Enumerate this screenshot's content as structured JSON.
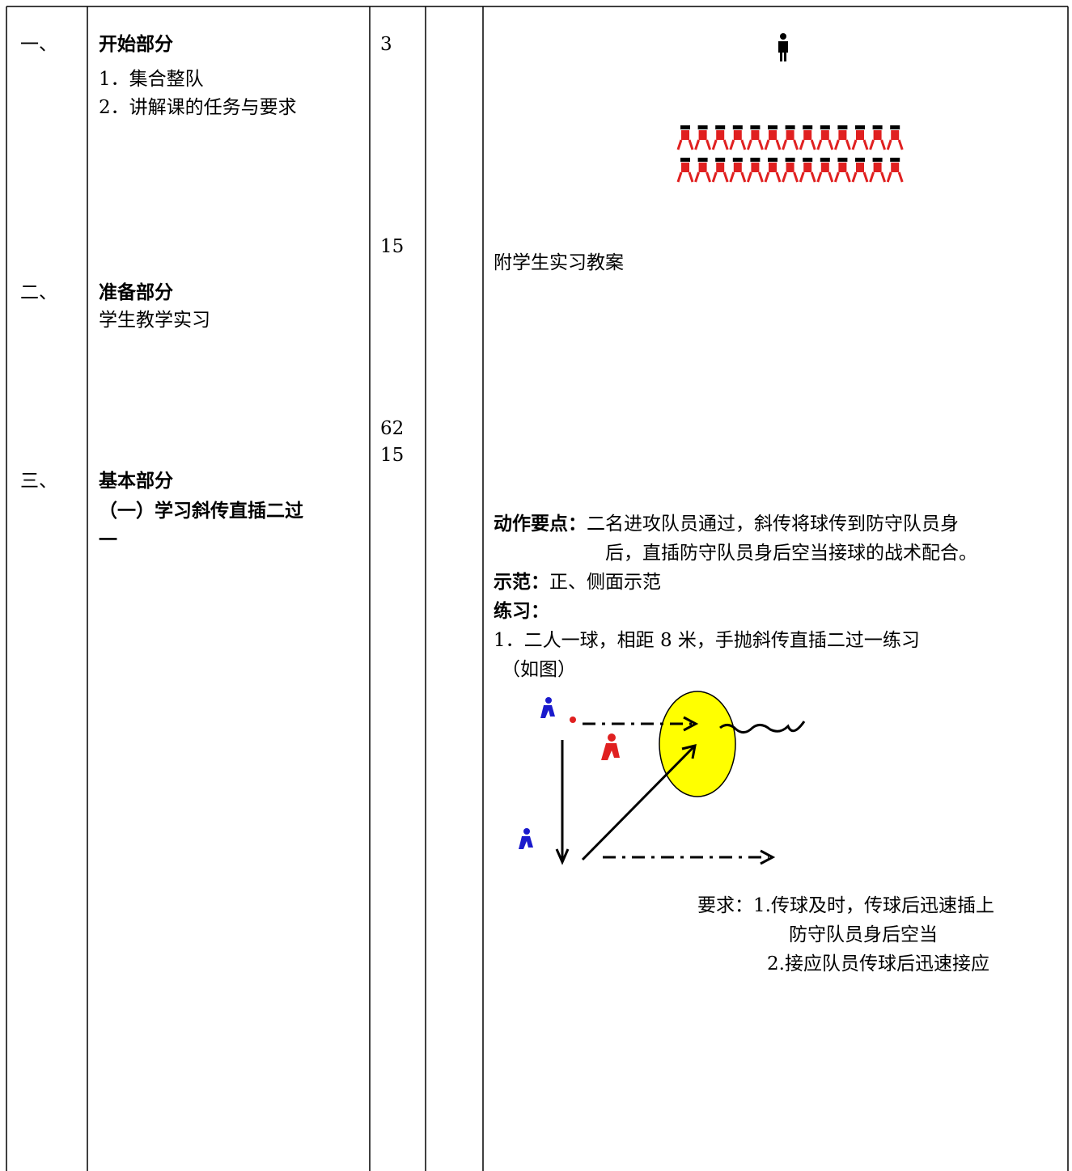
{
  "sections": [
    {
      "number": "一、",
      "title": "开始部分",
      "items": [
        "1．集合整队",
        "2．讲解课的任务与要求"
      ]
    },
    {
      "number": "二、",
      "title": "准备部分",
      "items": [
        "学生教学实习"
      ]
    },
    {
      "number": "三、",
      "title": "基本部分",
      "subtitle_lines": [
        "（一）学习斜传直插二过",
        "一"
      ]
    }
  ],
  "times": [
    3,
    15,
    62,
    15
  ],
  "organization": {
    "note": "附学生实习教案",
    "key_points_label": "动作要点：",
    "key_points_lines": [
      "二名进攻队员通过，斜传将球传到防守队员身",
      "后，直插防守队员身后空当接球的战术配合。"
    ],
    "demo_label": "示范：",
    "demo_text": "正、侧面示范",
    "practice_label": "练习：",
    "practice_items": [
      "1．二人一球，相距 8 米，手抛斜传直插二过一练习",
      "（如图）"
    ],
    "requirements_lines": [
      "要求：1.传球及时，传球后迅速插上",
      "防守队员身后空当",
      "2.接应队员传球后迅速接应"
    ]
  }
}
